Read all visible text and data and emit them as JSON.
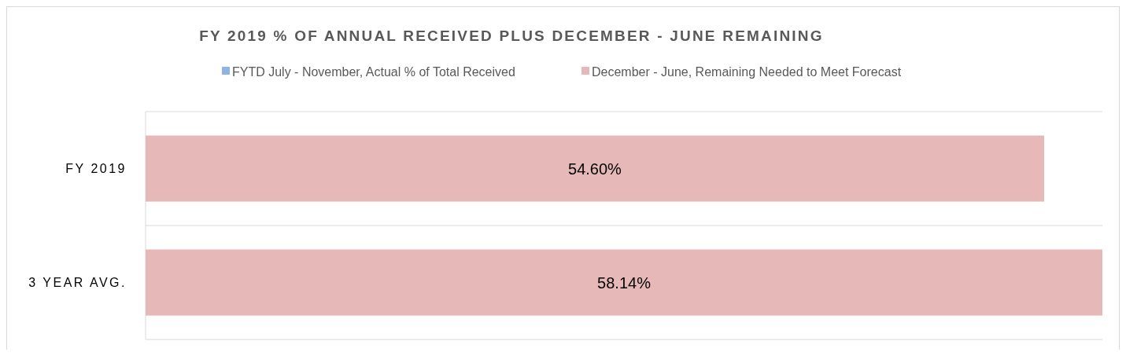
{
  "chart_data": {
    "type": "bar",
    "orientation": "horizontal",
    "title": "FY 2019 % OF ANNUAL RECEIVED PLUS DECEMBER - JUNE REMAINING",
    "categories": [
      "FY 2019",
      "3 YEAR AVG."
    ],
    "series": [
      {
        "name": "FYTD July - November, Actual % of Total Received",
        "color": "#8eb4e3",
        "values": [
          null,
          null
        ]
      },
      {
        "name": "December - June, Remaining Needed to Meet Forecast",
        "color": "#e6b8b7",
        "values": [
          54.6,
          58.14
        ],
        "value_labels": [
          "54.60%",
          "58.14%"
        ]
      }
    ],
    "legend": "top",
    "tick_labels": "y"
  }
}
